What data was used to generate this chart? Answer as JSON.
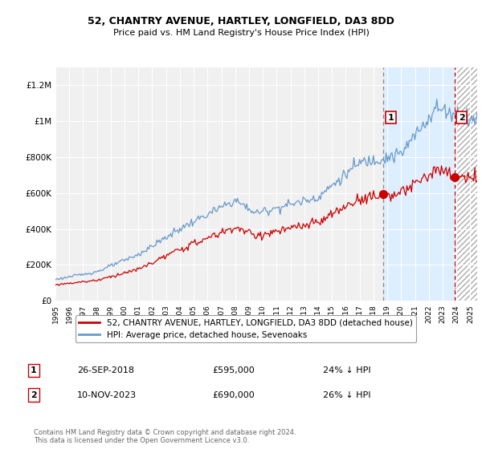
{
  "title": "52, CHANTRY AVENUE, HARTLEY, LONGFIELD, DA3 8DD",
  "subtitle": "Price paid vs. HM Land Registry's House Price Index (HPI)",
  "ylim": [
    0,
    1300000
  ],
  "xlim_left": 1995,
  "xlim_right": 2025.5,
  "yticks": [
    0,
    200000,
    400000,
    600000,
    800000,
    1000000,
    1200000
  ],
  "ytick_labels": [
    "£0",
    "£200K",
    "£400K",
    "£600K",
    "£800K",
    "£1M",
    "£1.2M"
  ],
  "xtick_years": [
    1995,
    1996,
    1997,
    1998,
    1999,
    2000,
    2001,
    2002,
    2003,
    2004,
    2005,
    2006,
    2007,
    2008,
    2009,
    2010,
    2011,
    2012,
    2013,
    2014,
    2015,
    2016,
    2017,
    2018,
    2019,
    2020,
    2021,
    2022,
    2023,
    2024,
    2025
  ],
  "hpi_color": "#6699cc",
  "price_color": "#cc0000",
  "marker1_date": 2018.73,
  "marker1_price": 595000,
  "marker2_date": 2023.86,
  "marker2_price": 690000,
  "legend_line1": "52, CHANTRY AVENUE, HARTLEY, LONGFIELD, DA3 8DD (detached house)",
  "legend_line2": "HPI: Average price, detached house, Sevenoaks",
  "annotation1_date": "26-SEP-2018",
  "annotation1_price": "£595,000",
  "annotation1_pct": "24% ↓ HPI",
  "annotation2_date": "10-NOV-2023",
  "annotation2_price": "£690,000",
  "annotation2_pct": "26% ↓ HPI",
  "footnote": "Contains HM Land Registry data © Crown copyright and database right 2024.\nThis data is licensed under the Open Government Licence v3.0.",
  "background_color": "#ffffff",
  "plot_bg_color": "#f0f0f0",
  "grid_color": "#ffffff",
  "shade_color": "#ddeeff",
  "hatch_color": "#cccccc"
}
